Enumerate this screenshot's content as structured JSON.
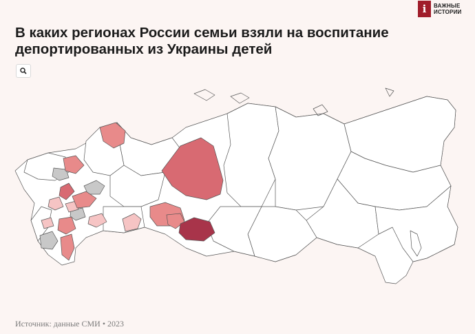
{
  "header": {
    "logo_line1": "ВАЖНЫЕ",
    "logo_line2": "ИСТОРИИ",
    "title": "В каких регионах России семьи взяли на воспитание депортированных из Украины детей"
  },
  "toolbar": {
    "search_icon": "search-icon"
  },
  "footer": {
    "source": "Источник: данные СМИ • 2023"
  },
  "colors": {
    "background": "#fcf5f3",
    "no_data": "#ffffff",
    "unknown": "#c8c8c8",
    "scale_light": "#f6c4c4",
    "scale_medium": "#e88a8a",
    "scale_strong": "#d86a72",
    "scale_max": "#a8344a",
    "logo": "#a01d2a"
  }
}
